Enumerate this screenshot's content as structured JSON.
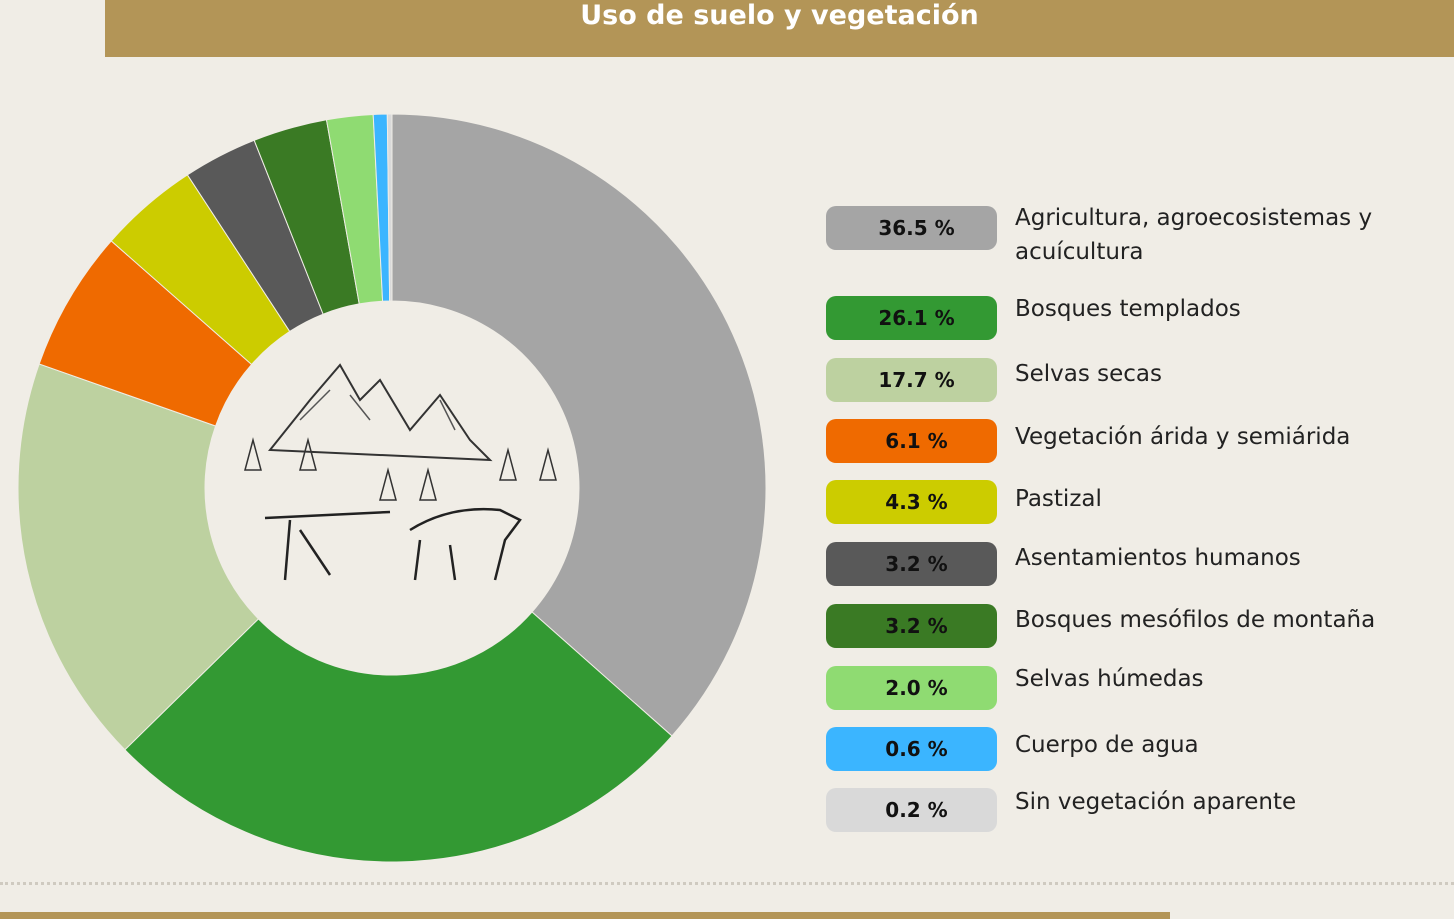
{
  "chart_data": {
    "type": "donut",
    "title": "Uso de suelo y vegetación",
    "categories": [
      "Agricultura, agroecosistemas y acuícultura",
      "Bosques templados",
      "Selvas secas",
      "Vegetación árida y semiárida",
      "Pastizal",
      "Asentamientos humanos",
      "Bosques mesófilos de montaña",
      "Selvas húmedas",
      "Cuerpo de agua",
      "Sin vegetación aparente"
    ],
    "values": [
      36.5,
      26.1,
      17.7,
      6.1,
      4.3,
      3.2,
      3.2,
      2.0,
      0.6,
      0.2
    ],
    "value_labels": [
      "36.5 %",
      "26.1 %",
      "17.7 %",
      "6.1 %",
      "4.3 %",
      "3.2 %",
      "3.2 %",
      "2.0 %",
      "0.6 %",
      "0.2 %"
    ],
    "colors": [
      "#a5a5a5",
      "#339933",
      "#bdd1a0",
      "#ef6a00",
      "#cccc00",
      "#595959",
      "#3a7a24",
      "#8fdb72",
      "#3bb5ff",
      "#d9d9d9"
    ]
  }
}
